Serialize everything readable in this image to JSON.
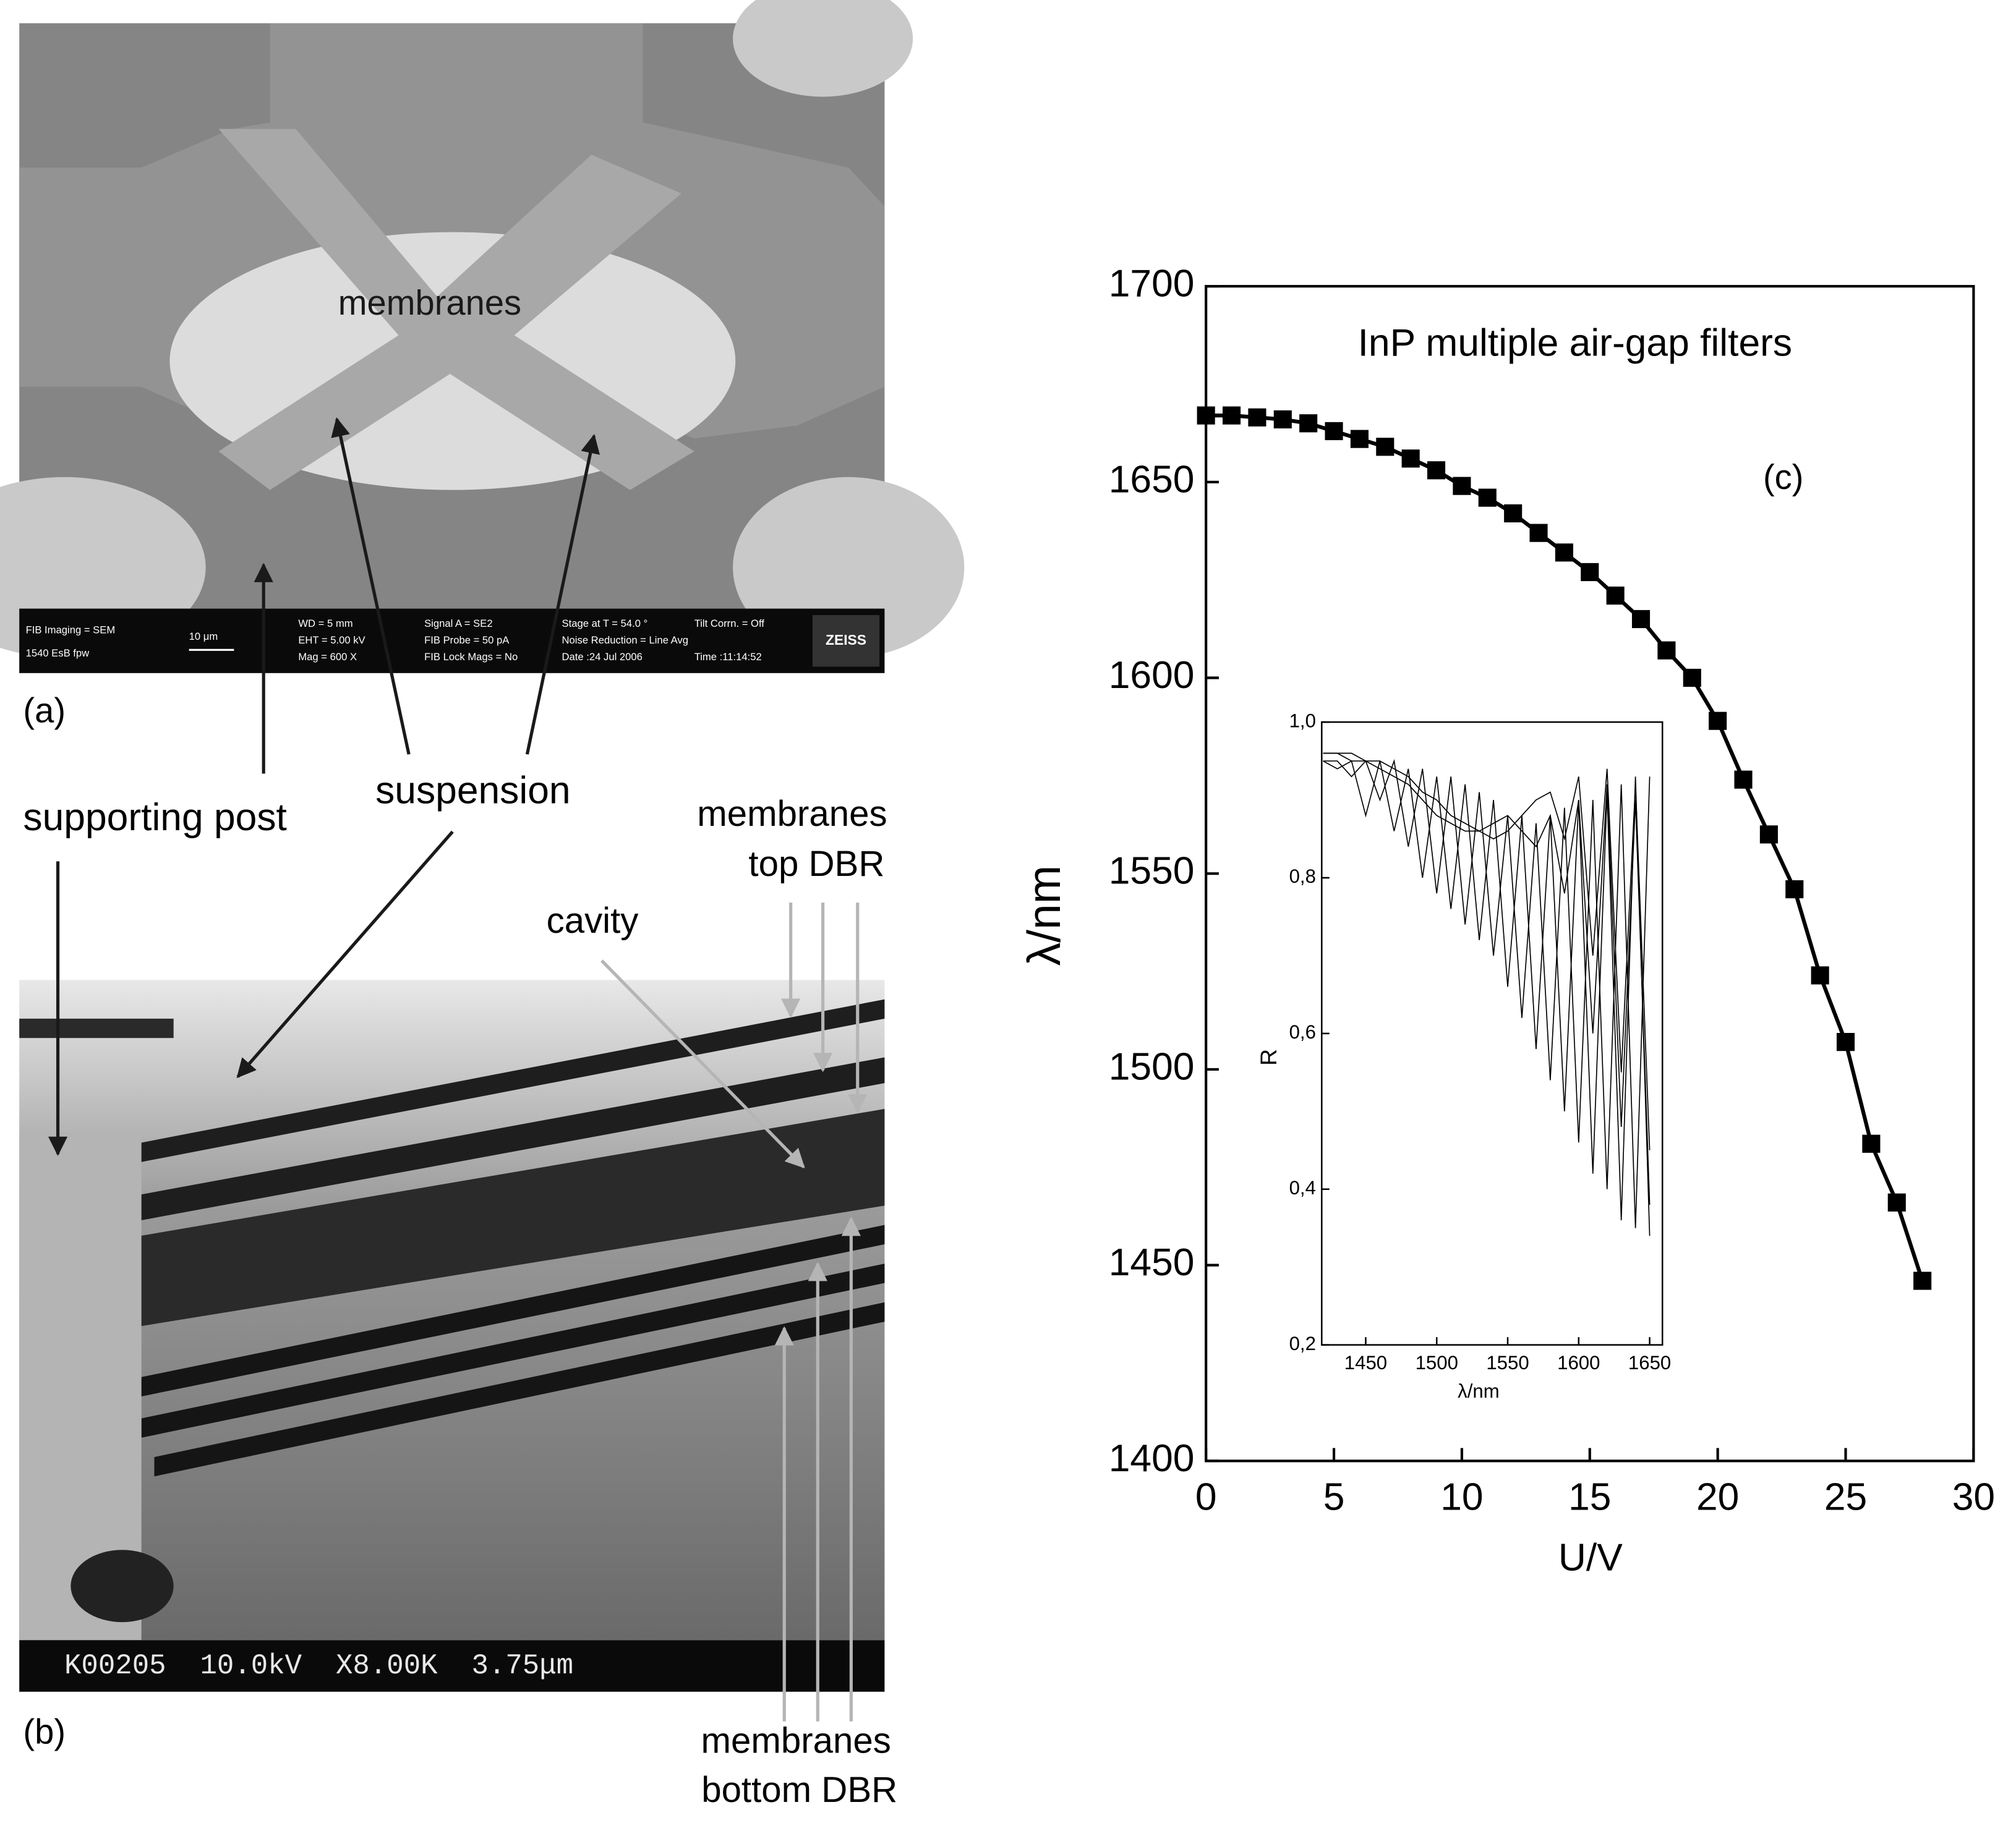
{
  "figure": {
    "panel_a": {
      "label": "(a)",
      "image_text": "membranes",
      "info_bar": [
        "FIB Imaging = SEM",
        "1540 EsB    fpw",
        "10 μm",
        "WD =    5 mm",
        "EHT = 5.00 kV",
        "Mag =    600 X",
        "Signal A = SE2",
        "FIB Probe = 50 pA",
        "FIB Lock Mags = No",
        "Stage at T = 54.0 °",
        "Noise Reduction = Line Avg",
        "Date :24 Jul 2006",
        "Tilt Corrn. = Off",
        "Time :11:14:52"
      ],
      "logo": "ZEISS"
    },
    "panel_b": {
      "label": "(b)",
      "info_bar": "K00205  10.0kV  X8.00K  3.75μm"
    },
    "annotations": {
      "supporting_post": "supporting post",
      "suspension": "suspension",
      "membranes_top": [
        "membranes",
        "top DBR"
      ],
      "cavity": "cavity",
      "membranes_bottom": [
        "membranes",
        "bottom DBR"
      ]
    }
  },
  "chart_data": [
    {
      "type": "line",
      "title": "InP multiple air-gap filters",
      "annotation": "(c)",
      "x_label": "U/V",
      "y_label": "λ/nm",
      "marker": "square",
      "x": [
        0,
        1,
        2,
        3,
        4,
        5,
        6,
        7,
        8,
        9,
        10,
        11,
        12,
        13,
        14,
        15,
        16,
        17,
        18,
        19,
        20,
        21,
        22,
        23,
        24,
        25,
        26,
        27,
        28
      ],
      "series": [
        {
          "color": "#000000",
          "values": [
            1667,
            1667,
            1666.5,
            1666,
            1665,
            1663,
            1661,
            1659,
            1656,
            1653,
            1649,
            1646,
            1642,
            1637,
            1632,
            1627,
            1621,
            1615,
            1607,
            1600,
            1589,
            1574,
            1560,
            1546,
            1524,
            1507,
            1481,
            1466,
            1446
          ]
        }
      ],
      "xlim": [
        0,
        30
      ],
      "xticks": [
        0,
        5,
        10,
        15,
        20,
        25,
        30
      ],
      "ylim": [
        1400,
        1700
      ],
      "yticks": [
        1400,
        1450,
        1500,
        1550,
        1600,
        1650,
        1700
      ]
    },
    {
      "type": "line",
      "x_label": "λ/nm",
      "y_label": "R",
      "x": [
        1420,
        1430,
        1440,
        1450,
        1460,
        1470,
        1480,
        1490,
        1500,
        1510,
        1520,
        1530,
        1540,
        1550,
        1560,
        1570,
        1580,
        1590,
        1600,
        1610,
        1620,
        1630,
        1640,
        1650
      ],
      "series": [
        {
          "color": "#000000",
          "values": [
            0.95,
            0.94,
            0.95,
            0.88,
            0.95,
            0.86,
            0.94,
            0.8,
            0.93,
            0.76,
            0.92,
            0.72,
            0.9,
            0.66,
            0.88,
            0.58,
            0.88,
            0.5,
            0.9,
            0.42,
            0.91,
            0.36,
            0.93,
            0.34
          ]
        },
        {
          "color": "#000000",
          "values": [
            0.95,
            0.95,
            0.93,
            0.95,
            0.9,
            0.95,
            0.84,
            0.94,
            0.78,
            0.93,
            0.74,
            0.91,
            0.7,
            0.88,
            0.62,
            0.87,
            0.54,
            0.89,
            0.46,
            0.9,
            0.4,
            0.92,
            0.35,
            0.93
          ]
        },
        {
          "color": "#000000",
          "values": [
            0.96,
            0.96,
            0.95,
            0.95,
            0.94,
            0.93,
            0.92,
            0.9,
            0.88,
            0.87,
            0.86,
            0.86,
            0.87,
            0.88,
            0.86,
            0.84,
            0.88,
            0.78,
            0.9,
            0.6,
            0.92,
            0.48,
            0.9,
            0.38
          ]
        },
        {
          "color": "#000000",
          "values": [
            0.96,
            0.96,
            0.96,
            0.95,
            0.95,
            0.94,
            0.93,
            0.91,
            0.9,
            0.88,
            0.87,
            0.86,
            0.85,
            0.86,
            0.88,
            0.9,
            0.91,
            0.85,
            0.93,
            0.7,
            0.94,
            0.55,
            0.92,
            0.45
          ]
        }
      ],
      "xlim": [
        1419,
        1659
      ],
      "xticks": [
        1450,
        1500,
        1550,
        1600,
        1650
      ],
      "ylim": [
        0.2,
        1.0
      ],
      "yticks": [
        {
          "value": 0.2,
          "label": "0,2"
        },
        {
          "value": 0.4,
          "label": "0,4"
        },
        {
          "value": 0.6,
          "label": "0,6"
        },
        {
          "value": 0.8,
          "label": "0,8"
        },
        {
          "value": 1.0,
          "label": "1,0"
        }
      ]
    }
  ]
}
